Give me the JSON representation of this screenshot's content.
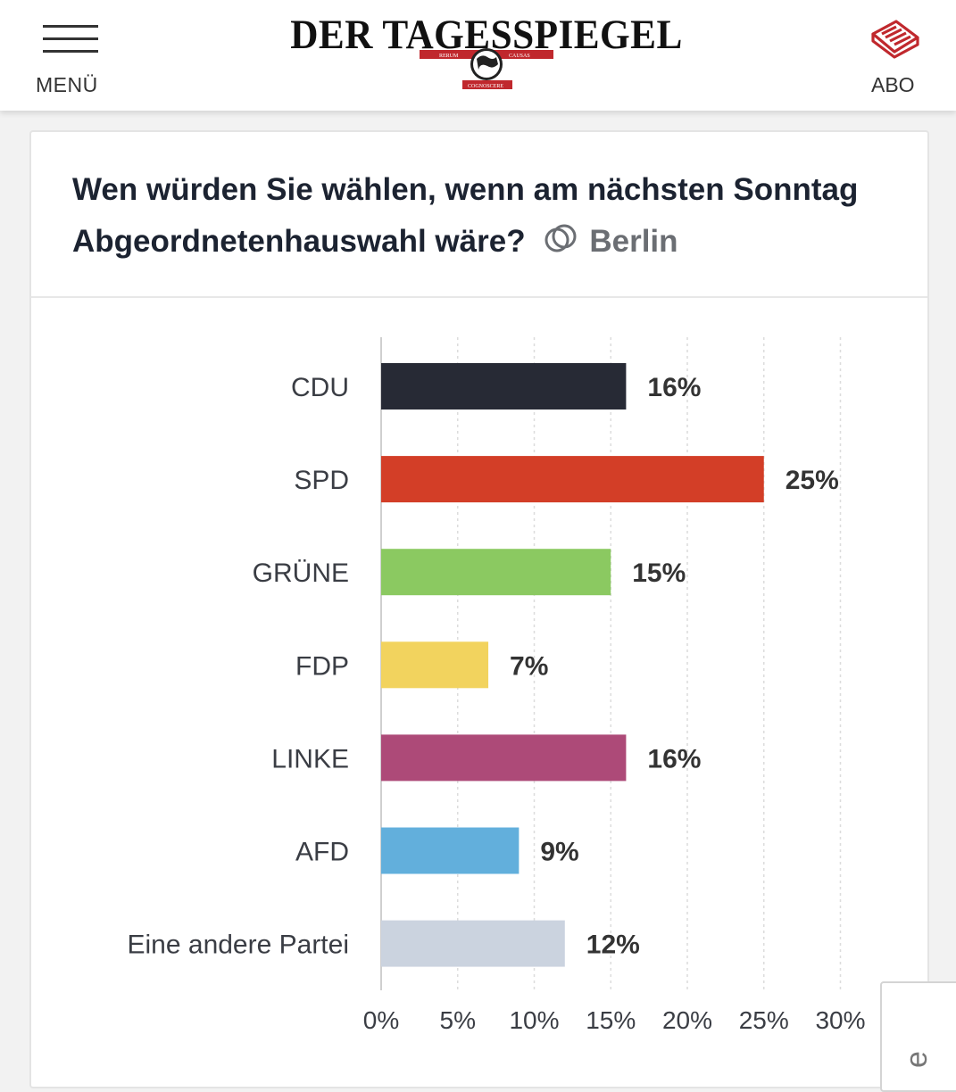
{
  "header": {
    "menu_label": "MENÜ",
    "logo_text": "DER TAGESSPIEGEL",
    "logo_motto_left": "RERUM",
    "logo_motto_right": "CAUSAS",
    "logo_motto_bottom": "COGNOSCERE",
    "abo_label": "ABO",
    "icons": {
      "menu": "hamburger-icon",
      "abo": "newspaper-icon"
    }
  },
  "card": {
    "title": "Wen würden Sie wählen, wenn am nächsten Sonntag Abgeordnetenhauswahl wäre?",
    "region": "Berlin",
    "region_icon": "overlap-circles-icon"
  },
  "corner_button": {
    "glyph": "e"
  },
  "chart_data": {
    "type": "bar",
    "orientation": "horizontal",
    "title": "",
    "xlabel": "",
    "ylabel": "",
    "categories": [
      "CDU",
      "SPD",
      "GRÜNE",
      "FDP",
      "LINKE",
      "AFD",
      "Eine andere Partei"
    ],
    "values": [
      16,
      25,
      15,
      7,
      16,
      9,
      12
    ],
    "value_labels": [
      "16%",
      "25%",
      "15%",
      "7%",
      "16%",
      "9%",
      "12%"
    ],
    "colors": [
      "#272a35",
      "#d33e27",
      "#8bc961",
      "#f2d35e",
      "#ad4a78",
      "#62afdc",
      "#cbd3df"
    ],
    "xlim": [
      0,
      30
    ],
    "xticks": [
      0,
      5,
      10,
      15,
      20,
      25,
      30
    ],
    "xtick_labels": [
      "0%",
      "5%",
      "10%",
      "15%",
      "20%",
      "25%",
      "30%"
    ],
    "grid": true,
    "legend": "none"
  }
}
